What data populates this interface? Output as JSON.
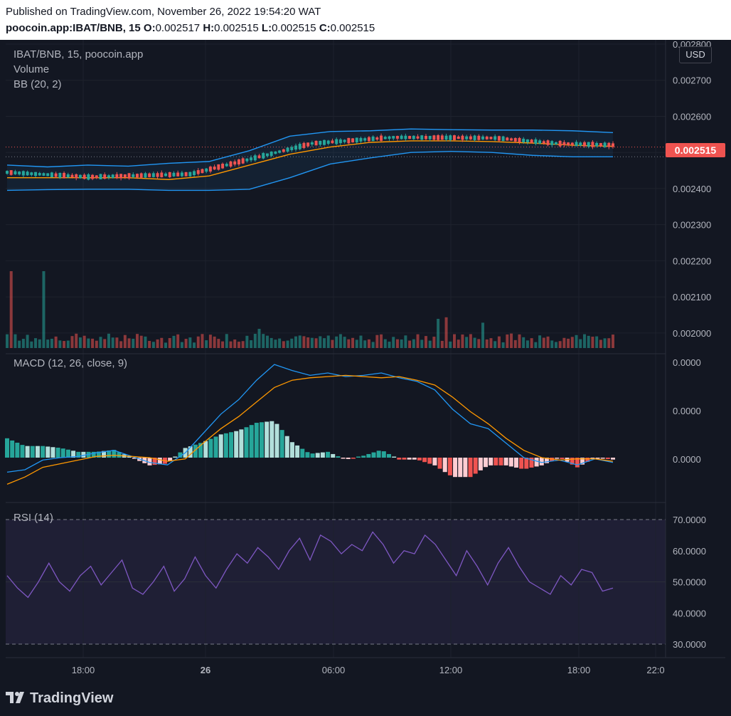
{
  "header": {
    "published": "Published on TradingView.com, November 26, 2022 19:54:20 WAT",
    "symbol": "poocoin.app:IBAT/BNB, 15",
    "o_label": "O:",
    "o_value": "0.002517",
    "h_label": "H:",
    "h_value": "0.002515",
    "l_label": "L:",
    "l_value": "0.002515",
    "c_label": "C:",
    "c_value": "0.002515"
  },
  "legend": {
    "symbol": "IBAT/BNB, 15, poocoin.app",
    "volume": "Volume",
    "bb": "BB (20, 2)",
    "macd": "MACD (12, 26, close, 9)",
    "rsi": "RSI (14)"
  },
  "currency_button": "USD",
  "last_price": "0.002515",
  "footer": {
    "brand": "TradingView"
  },
  "colors": {
    "up": "#26a69a",
    "down": "#ef5350",
    "bb": "#2196f3",
    "basis": "#ff9800",
    "macd": "#2196f3",
    "signal": "#ff9800",
    "rsi": "#7e57c2",
    "background": "#131722"
  },
  "chart_data": [
    {
      "type": "candlestick",
      "title": "IBAT/BNB, 15, poocoin.app",
      "price_axis_ticks": [
        "0.002800",
        "0.002700",
        "0.002600",
        "0.002500",
        "0.002400",
        "0.002300",
        "0.002200",
        "0.002100",
        "0.002000"
      ],
      "ylim": [
        0.00198,
        0.0028
      ],
      "time_axis_ticks": [
        "18:00",
        "26",
        "06:00",
        "12:00",
        "18:00",
        "22:0"
      ],
      "last_price": 0.002515,
      "trend_anchors": [
        {
          "i": 0,
          "v": 0.002445
        },
        {
          "i": 20,
          "v": 0.002432
        },
        {
          "i": 45,
          "v": 0.00244
        },
        {
          "i": 55,
          "v": 0.002468
        },
        {
          "i": 75,
          "v": 0.002525
        },
        {
          "i": 95,
          "v": 0.002542
        },
        {
          "i": 120,
          "v": 0.00254
        },
        {
          "i": 135,
          "v": 0.002525
        },
        {
          "i": 150,
          "v": 0.00252
        }
      ],
      "bollinger": {
        "upper": [
          0.002465,
          0.00246,
          0.002465,
          0.002462,
          0.00247,
          0.002475,
          0.002505,
          0.002545,
          0.002558,
          0.00256,
          0.002565,
          0.002563,
          0.002562,
          0.002562,
          0.00256,
          0.002555
        ],
        "basis": [
          0.00243,
          0.00243,
          0.00243,
          0.00243,
          0.002425,
          0.002435,
          0.002465,
          0.002495,
          0.002515,
          0.002528,
          0.002532,
          0.002532,
          0.00253,
          0.002526,
          0.00252,
          0.002517
        ],
        "lower": [
          0.002395,
          0.002397,
          0.002398,
          0.002398,
          0.002395,
          0.002395,
          0.002398,
          0.00243,
          0.002468,
          0.002485,
          0.0025,
          0.002503,
          0.0025,
          0.002492,
          0.002488,
          0.002488
        ]
      },
      "volume_scale_max": 100,
      "volume_spikes": [
        {
          "i": 1,
          "v": 100,
          "dir": "down"
        },
        {
          "i": 9,
          "v": 100,
          "dir": "up"
        },
        {
          "i": 62,
          "v": 25,
          "dir": "up"
        },
        {
          "i": 106,
          "v": 38,
          "dir": "up"
        },
        {
          "i": 108,
          "v": 40,
          "dir": "down"
        },
        {
          "i": 117,
          "v": 33,
          "dir": "up"
        },
        {
          "i": 142,
          "v": 18,
          "dir": "up"
        }
      ]
    },
    {
      "type": "line",
      "title": "MACD (12, 26, close, 9)",
      "axis_ticks": [
        "0.0000",
        "0.0000",
        "0.0000"
      ],
      "series": [
        {
          "name": "MACD",
          "values": [
            -0.6,
            -0.5,
            -0.1,
            0.0,
            0.05,
            0.2,
            0.3,
            0.05,
            -0.2,
            -0.3,
            0.2,
            1.0,
            1.8,
            2.4,
            3.2,
            3.85,
            3.6,
            3.4,
            3.5,
            3.35,
            3.4,
            3.5,
            3.3,
            3.15,
            2.8,
            2.0,
            1.4,
            1.2,
            0.6,
            0.0,
            -0.2,
            -0.1,
            -0.3,
            -0.05,
            -0.2
          ]
        },
        {
          "name": "Signal",
          "values": [
            -1.1,
            -0.8,
            -0.4,
            -0.25,
            -0.1,
            0.05,
            0.1,
            0.05,
            0.0,
            -0.15,
            -0.05,
            0.6,
            1.2,
            1.7,
            2.3,
            2.9,
            3.2,
            3.3,
            3.35,
            3.4,
            3.35,
            3.3,
            3.35,
            3.2,
            3.0,
            2.5,
            1.9,
            1.4,
            0.8,
            0.3,
            0.0,
            -0.1,
            -0.05,
            -0.05,
            -0.15
          ]
        }
      ]
    },
    {
      "type": "line",
      "title": "RSI (14)",
      "axis_ticks": [
        "70.0000",
        "60.0000",
        "50.0000",
        "40.0000",
        "30.0000"
      ],
      "ylim": [
        25,
        77
      ],
      "bands": [
        30,
        70
      ],
      "series": [
        {
          "name": "RSI",
          "values": [
            52,
            48,
            45,
            50,
            56,
            50,
            47,
            52,
            55,
            49,
            53,
            57,
            48,
            46,
            50,
            55,
            47,
            51,
            58,
            52,
            48,
            54,
            59,
            56,
            61,
            58,
            54,
            60,
            64,
            57,
            65,
            63,
            59,
            62,
            60,
            66,
            62,
            56,
            60,
            59,
            65,
            62,
            57,
            52,
            60,
            55,
            49,
            56,
            61,
            55,
            50,
            48,
            46,
            52,
            49,
            54,
            53,
            47,
            48
          ]
        }
      ]
    }
  ]
}
